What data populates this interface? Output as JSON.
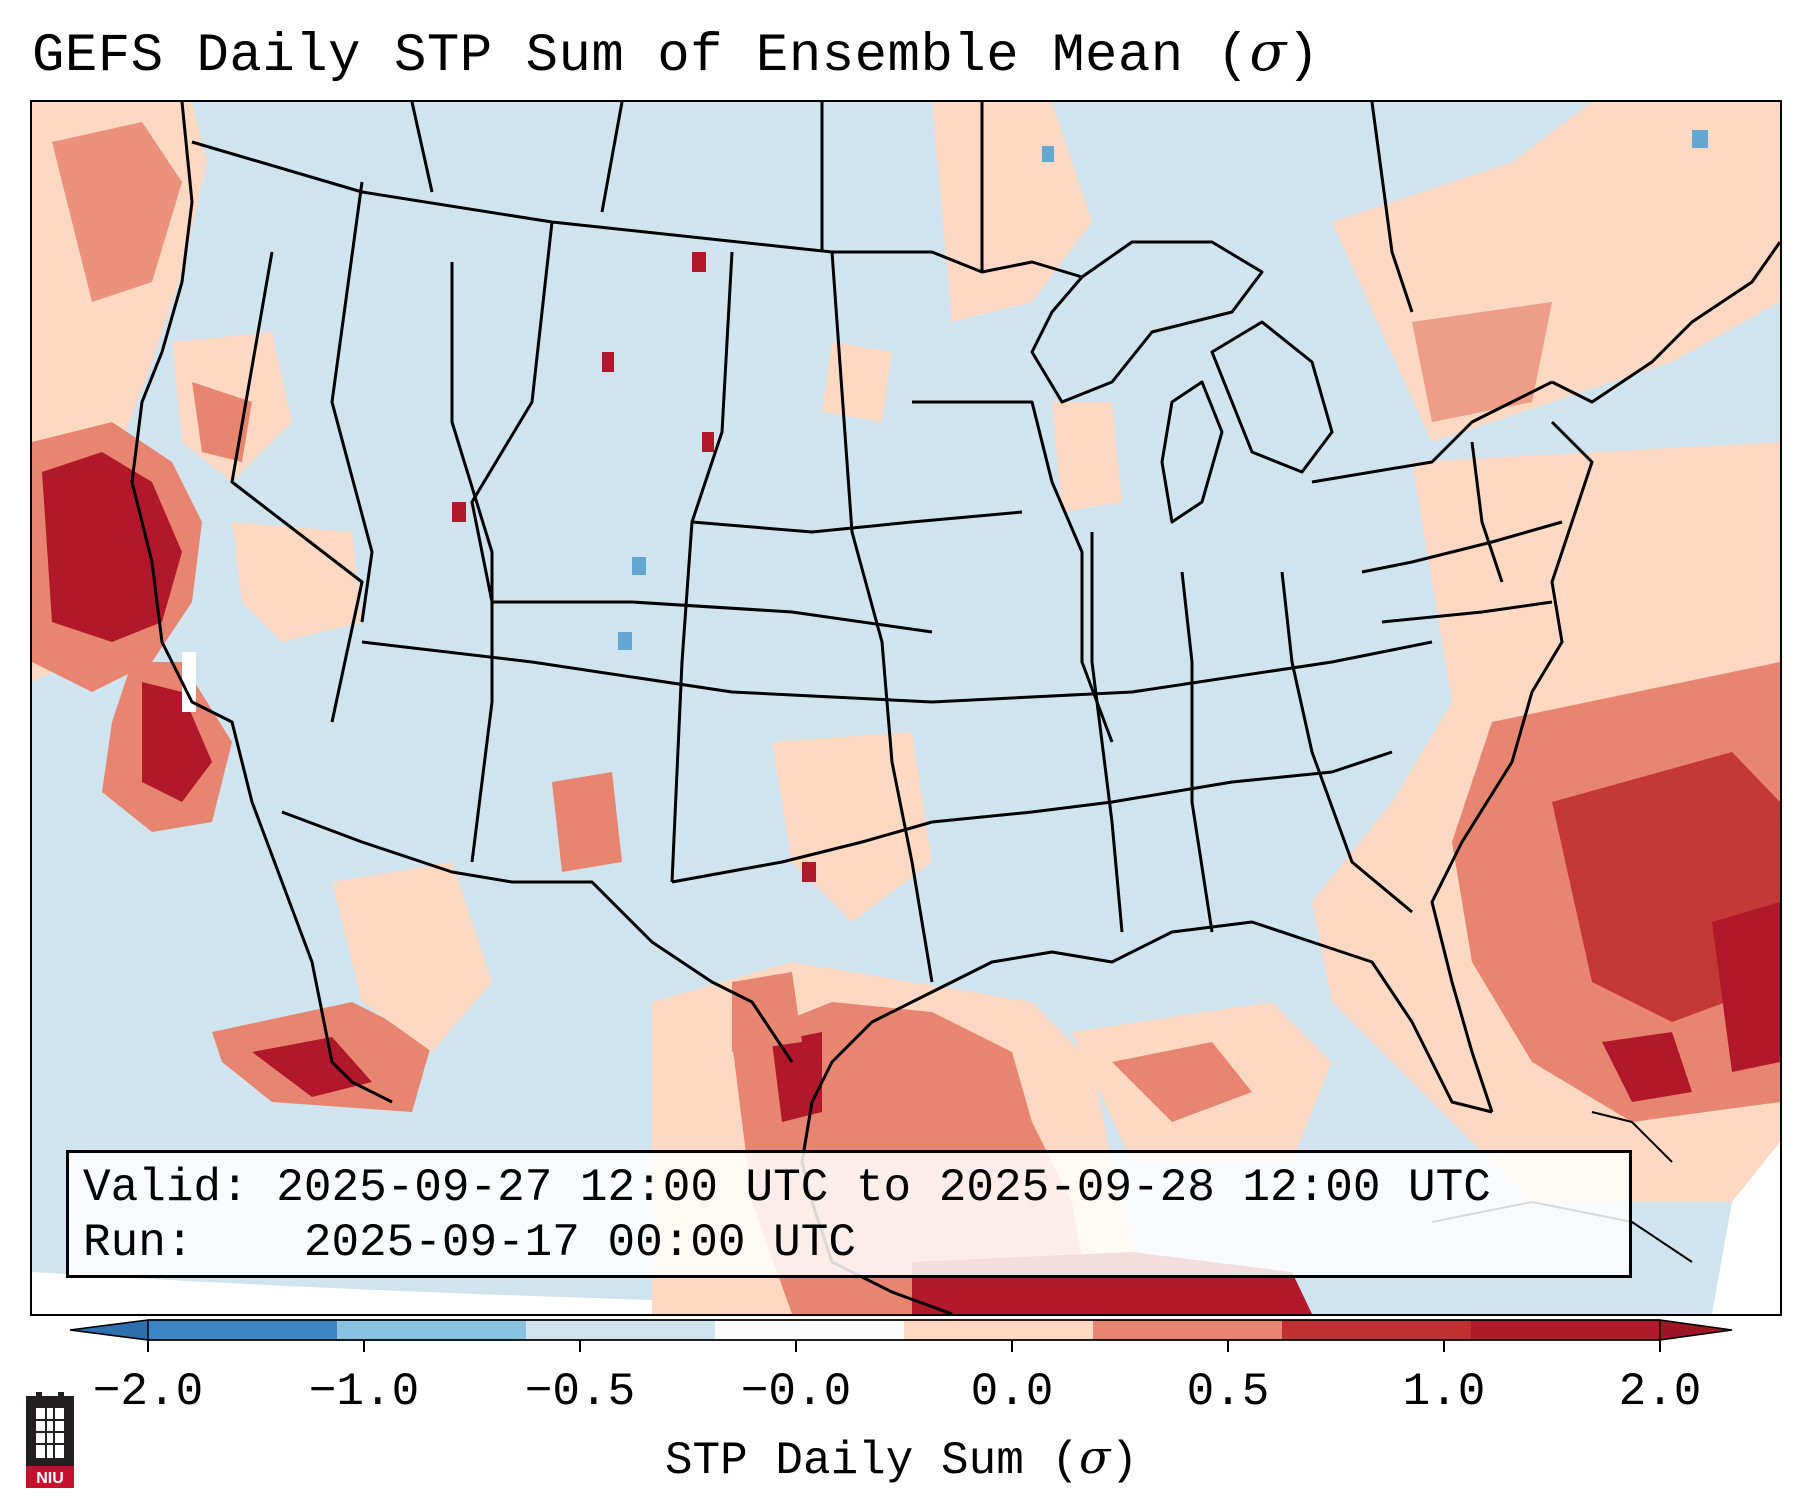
{
  "title": {
    "text": "GEFS Daily STP Sum of Ensemble Mean (",
    "symbol": "σ",
    "close": ")"
  },
  "info": {
    "valid_label": "Valid:",
    "valid_value": "2025-09-27 12:00 UTC to 2025-09-28 12:00 UTC",
    "run_label": "Run:",
    "run_value": "2025-09-17 00:00 UTC"
  },
  "colorbar": {
    "label_text": "STP Daily Sum (",
    "label_symbol": "σ",
    "label_close": ")",
    "ticks": [
      "−2.0",
      "−1.0",
      "−0.5",
      "−0.0",
      "0.0",
      "0.5",
      "1.0",
      "2.0"
    ],
    "colors": [
      "#3a86c6",
      "#8ac2e2",
      "#cfe4ef",
      "#fbfbfb",
      "#fdd8c2",
      "#e78570",
      "#c03030",
      "#b2182b"
    ],
    "extend_low_color": "#2e6fb0",
    "extend_high_color": "#9e1626"
  },
  "map": {
    "background_color": "#cfe4ef",
    "outside_color": "#ffffff",
    "border_color": "#000000"
  },
  "logo": {
    "text": "NIU",
    "color": "#c8102e"
  }
}
